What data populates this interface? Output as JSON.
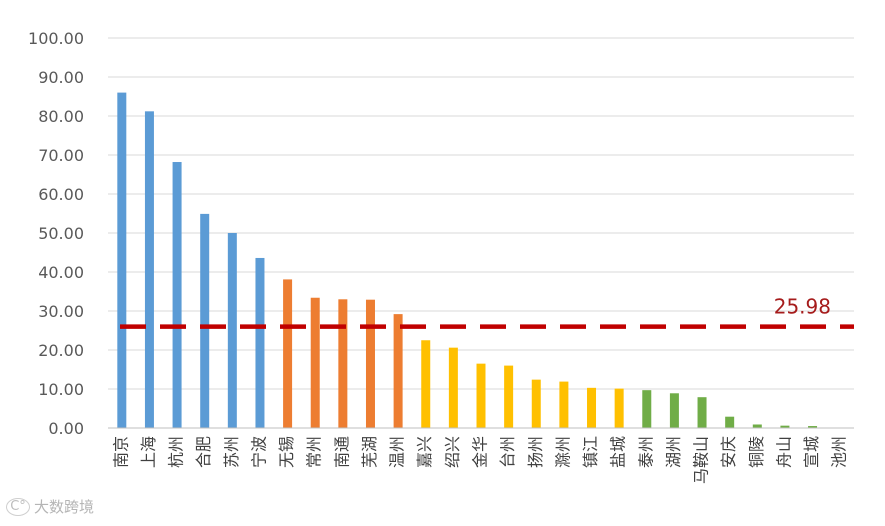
{
  "chart_data": {
    "type": "bar",
    "title": "",
    "xlabel": "",
    "ylabel": "",
    "ylim": [
      0,
      100
    ],
    "y_ticks": [
      "0.00",
      "10.00",
      "20.00",
      "30.00",
      "40.00",
      "50.00",
      "60.00",
      "70.00",
      "80.00",
      "90.00",
      "100.00"
    ],
    "grid": true,
    "categories": [
      "南京",
      "上海",
      "杭州",
      "合肥",
      "苏州",
      "宁波",
      "无锡",
      "常州",
      "南通",
      "芜湖",
      "温州",
      "嘉兴",
      "绍兴",
      "金华",
      "台州",
      "扬州",
      "滁州",
      "镇江",
      "盐城",
      "泰州",
      "湖州",
      "马鞍山",
      "安庆",
      "铜陵",
      "舟山",
      "宣城",
      "池州"
    ],
    "values": [
      86.0,
      81.2,
      68.2,
      54.9,
      50.0,
      43.6,
      38.1,
      33.4,
      33.0,
      32.9,
      29.2,
      22.5,
      20.6,
      16.5,
      16.0,
      12.4,
      11.9,
      10.3,
      10.1,
      9.7,
      8.9,
      7.9,
      2.9,
      0.9,
      0.6,
      0.5,
      0.1
    ],
    "bar_colors": [
      "#5b9bd5",
      "#5b9bd5",
      "#5b9bd5",
      "#5b9bd5",
      "#5b9bd5",
      "#5b9bd5",
      "#ed7d31",
      "#ed7d31",
      "#ed7d31",
      "#ed7d31",
      "#ed7d31",
      "#ffc000",
      "#ffc000",
      "#ffc000",
      "#ffc000",
      "#ffc000",
      "#ffc000",
      "#ffc000",
      "#ffc000",
      "#70ad47",
      "#70ad47",
      "#70ad47",
      "#70ad47",
      "#70ad47",
      "#70ad47",
      "#70ad47",
      "#70ad47"
    ],
    "average_line": {
      "value": 25.98,
      "label": "25.98",
      "color": "#c00000"
    }
  },
  "watermark": {
    "text": "大数跨境",
    "icon": "brand-logo-icon"
  }
}
